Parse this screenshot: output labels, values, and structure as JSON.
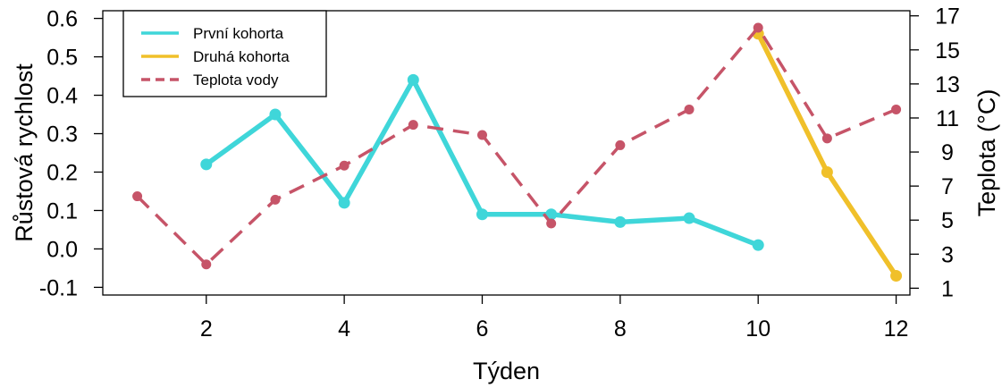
{
  "chart_data": {
    "type": "line",
    "xlabel": "Týden",
    "ylabel": "Růstová rychlost",
    "y2label": "Teplota (°C)",
    "xlim": [
      0.5,
      12.2
    ],
    "ylim": [
      -0.12,
      0.62
    ],
    "y2lim": [
      0.6,
      17.3
    ],
    "xticks": [
      2,
      4,
      6,
      8,
      10,
      12
    ],
    "yticks": [
      -0.1,
      0.0,
      0.1,
      0.2,
      0.3,
      0.4,
      0.5,
      0.6
    ],
    "ytick_labels": [
      "-0.1",
      "0.0",
      "0.1",
      "0.2",
      "0.3",
      "0.4",
      "0.5",
      "0.6"
    ],
    "y2ticks": [
      1,
      3,
      5,
      7,
      9,
      11,
      13,
      15,
      17
    ],
    "grid": false,
    "legend_position": "top-left",
    "series": [
      {
        "name": "První kohorta",
        "axis": "left",
        "color": "#3fd6d9",
        "style": "solid",
        "x": [
          2,
          3,
          4,
          5,
          6,
          7,
          8,
          9,
          10
        ],
        "values": [
          0.22,
          0.35,
          0.12,
          0.44,
          0.09,
          0.09,
          0.07,
          0.08,
          0.01
        ]
      },
      {
        "name": "Druhá kohorta",
        "axis": "left",
        "color": "#f0c02a",
        "style": "solid",
        "x": [
          10,
          11,
          12
        ],
        "values": [
          0.56,
          0.2,
          -0.07
        ]
      },
      {
        "name": "Teplota vody",
        "axis": "right",
        "color": "#c65468",
        "style": "dashed",
        "x": [
          1,
          2,
          3,
          4,
          5,
          6,
          7,
          8,
          9,
          10,
          11,
          12
        ],
        "values": [
          6.4,
          2.4,
          6.2,
          8.2,
          10.6,
          10.0,
          4.8,
          9.4,
          11.5,
          16.3,
          9.8,
          11.5
        ]
      }
    ]
  }
}
